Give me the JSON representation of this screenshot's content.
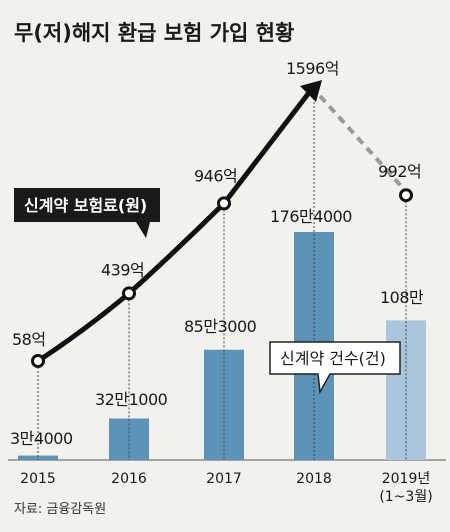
{
  "title": "무(저)해지 환급 보험 가입 현황",
  "source": "자료: 금융감독원",
  "chart_data": {
    "type": "bar+line",
    "categories": [
      "2015",
      "2016",
      "2017",
      "2018",
      "2019년"
    ],
    "category_sublabels": [
      "",
      "",
      "",
      "",
      "(1~3월)"
    ],
    "bars": {
      "name": "신계약 건수(건)",
      "values": [
        34000,
        321000,
        853000,
        1764000,
        1080000
      ],
      "labels": [
        "3만4000",
        "32만1000",
        "85만3000",
        "176만4000",
        "108만"
      ],
      "colors": [
        "#5b93b9",
        "#5b93b9",
        "#5b93b9",
        "#5b93b9",
        "#a9c6dc"
      ]
    },
    "line": {
      "name": "신계약 보험료(원)",
      "values": [
        58,
        439,
        946,
        1596,
        992
      ],
      "labels": [
        "58억",
        "439억",
        "946억",
        "1596억",
        "992억"
      ],
      "unit": "억",
      "last_segment_dashed": true
    }
  },
  "colors": {
    "bar": "#5b93b9",
    "bar_partial": "#a9c6dc",
    "line": "#111111",
    "dashed": "#9a9a9a",
    "background": "#f3f1ec"
  }
}
